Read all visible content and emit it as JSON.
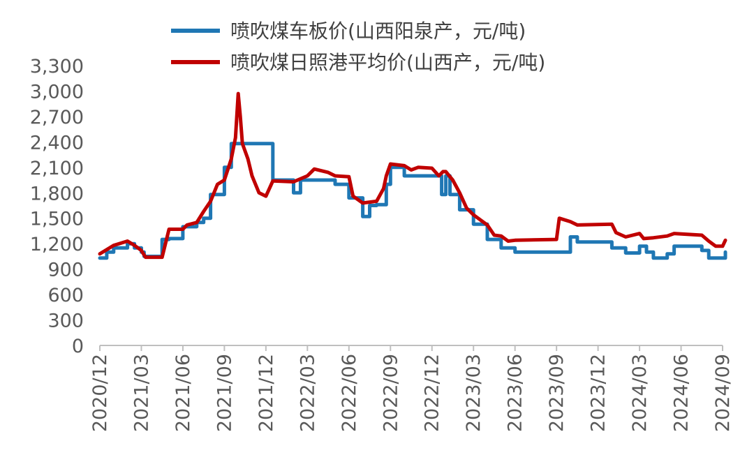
{
  "chart_data": {
    "type": "line",
    "title": "",
    "xlabel": "",
    "ylabel": "",
    "ylim": [
      0,
      3300
    ],
    "y_ticks": [
      "0",
      "300",
      "600",
      "900",
      "1,200",
      "1,500",
      "1,800",
      "2,100",
      "2,400",
      "2,700",
      "3,000",
      "3,300"
    ],
    "x_ticks": [
      "2020/12",
      "2021/03",
      "2021/06",
      "2021/09",
      "2021/12",
      "2022/03",
      "2022/06",
      "2022/09",
      "2022/12",
      "2023/03",
      "2023/06",
      "2023/09",
      "2023/12",
      "2024/03",
      "2024/06",
      "2024/09"
    ],
    "legend_position": "top",
    "grid": false,
    "series": [
      {
        "name": "喷吹煤车板价(山西阳泉产，元/吨)",
        "color": "#1f77b4",
        "style": "step",
        "points": [
          [
            "2020/12",
            1030
          ],
          [
            "2020/12.5",
            1100
          ],
          [
            "2021/01",
            1150
          ],
          [
            "2021/02",
            1200
          ],
          [
            "2021/02.5",
            1150
          ],
          [
            "2021/03",
            1100
          ],
          [
            "2021/03.2",
            1050
          ],
          [
            "2021/04",
            1050
          ],
          [
            "2021/04.5",
            1250
          ],
          [
            "2021/05",
            1260
          ],
          [
            "2021/06",
            1400
          ],
          [
            "2021/07",
            1450
          ],
          [
            "2021/07.5",
            1500
          ],
          [
            "2021/08",
            1780
          ],
          [
            "2021/09",
            2100
          ],
          [
            "2021/09.5",
            2380
          ],
          [
            "2021/10",
            2380
          ],
          [
            "2021/12.5",
            1950
          ],
          [
            "2022/01",
            1950
          ],
          [
            "2022/02",
            1800
          ],
          [
            "2022/02.5",
            1950
          ],
          [
            "2022/05",
            1900
          ],
          [
            "2022/06",
            1740
          ],
          [
            "2022/07",
            1520
          ],
          [
            "2022/07.5",
            1650
          ],
          [
            "2022/08",
            1660
          ],
          [
            "2022/08.7",
            1900
          ],
          [
            "2022/09",
            2100
          ],
          [
            "2022/10",
            2000
          ],
          [
            "2022/12",
            2000
          ],
          [
            "2022/12.7",
            1780
          ],
          [
            "2023/01",
            2000
          ],
          [
            "2023/01.3",
            1780
          ],
          [
            "2023/02",
            1600
          ],
          [
            "2023/03",
            1430
          ],
          [
            "2023/04",
            1250
          ],
          [
            "2023/05",
            1150
          ],
          [
            "2023/06",
            1100
          ],
          [
            "2023/09",
            1100
          ],
          [
            "2023/10",
            1280
          ],
          [
            "2023/10.5",
            1220
          ],
          [
            "2024/01",
            1150
          ],
          [
            "2024/02",
            1090
          ],
          [
            "2024/03",
            1170
          ],
          [
            "2024/03.5",
            1100
          ],
          [
            "2024/04",
            1030
          ],
          [
            "2024/05",
            1080
          ],
          [
            "2024/05.5",
            1170
          ],
          [
            "2024/07.5",
            1120
          ],
          [
            "2024/08",
            1030
          ],
          [
            "2024/09",
            1030
          ],
          [
            "2024/09.2",
            1100
          ]
        ]
      },
      {
        "name": "喷吹煤日照港平均价(山西产，元/吨)",
        "color": "#c00000",
        "style": "line",
        "points": [
          [
            "2020/12",
            1080
          ],
          [
            "2021/01",
            1180
          ],
          [
            "2021/02",
            1230
          ],
          [
            "2021/02.5",
            1180
          ],
          [
            "2021/03",
            1120
          ],
          [
            "2021/03.3",
            1040
          ],
          [
            "2021/04.5",
            1040
          ],
          [
            "2021/05",
            1370
          ],
          [
            "2021/06",
            1370
          ],
          [
            "2021/06.3",
            1420
          ],
          [
            "2021/07",
            1450
          ],
          [
            "2021/07.5",
            1580
          ],
          [
            "2021/08",
            1700
          ],
          [
            "2021/08.5",
            1900
          ],
          [
            "2021/09",
            1950
          ],
          [
            "2021/09.5",
            2200
          ],
          [
            "2021/09.8",
            2450
          ],
          [
            "2021/10",
            2970
          ],
          [
            "2021/10.15",
            2700
          ],
          [
            "2021/10.3",
            2380
          ],
          [
            "2021/10.7",
            2200
          ],
          [
            "2021/11",
            2000
          ],
          [
            "2021/11.5",
            1800
          ],
          [
            "2021/12",
            1760
          ],
          [
            "2021/12.5",
            1940
          ],
          [
            "2022/02",
            1930
          ],
          [
            "2022/03",
            2000
          ],
          [
            "2022/03.5",
            2080
          ],
          [
            "2022/04.5",
            2040
          ],
          [
            "2022/05",
            2000
          ],
          [
            "2022/06",
            1990
          ],
          [
            "2022/06.3",
            1760
          ],
          [
            "2022/07",
            1680
          ],
          [
            "2022/08",
            1700
          ],
          [
            "2022/08.5",
            1850
          ],
          [
            "2022/08.7",
            2000
          ],
          [
            "2022/09",
            2140
          ],
          [
            "2022/10",
            2120
          ],
          [
            "2022/10.5",
            2070
          ],
          [
            "2022/11",
            2100
          ],
          [
            "2022/12",
            2090
          ],
          [
            "2022/12.5",
            2000
          ],
          [
            "2022/12.8",
            2050
          ],
          [
            "2023/01",
            2050
          ],
          [
            "2023/01.5",
            1950
          ],
          [
            "2023/02",
            1800
          ],
          [
            "2023/02.5",
            1620
          ],
          [
            "2023/03",
            1540
          ],
          [
            "2023/04",
            1420
          ],
          [
            "2023/04.5",
            1300
          ],
          [
            "2023/05",
            1290
          ],
          [
            "2023/05.5",
            1230
          ],
          [
            "2023/06",
            1240
          ],
          [
            "2023/09",
            1250
          ],
          [
            "2023/09.2",
            1500
          ],
          [
            "2023/10",
            1460
          ],
          [
            "2023/10.5",
            1420
          ],
          [
            "2024/01",
            1430
          ],
          [
            "2024/01.3",
            1330
          ],
          [
            "2024/02",
            1280
          ],
          [
            "2024/03",
            1320
          ],
          [
            "2024/03.3",
            1260
          ],
          [
            "2024/04",
            1270
          ],
          [
            "2024/05",
            1290
          ],
          [
            "2024/05.5",
            1320
          ],
          [
            "2024/07.5",
            1300
          ],
          [
            "2024/08",
            1230
          ],
          [
            "2024/08.5",
            1170
          ],
          [
            "2024/09",
            1170
          ],
          [
            "2024/09.2",
            1240
          ]
        ]
      }
    ]
  }
}
